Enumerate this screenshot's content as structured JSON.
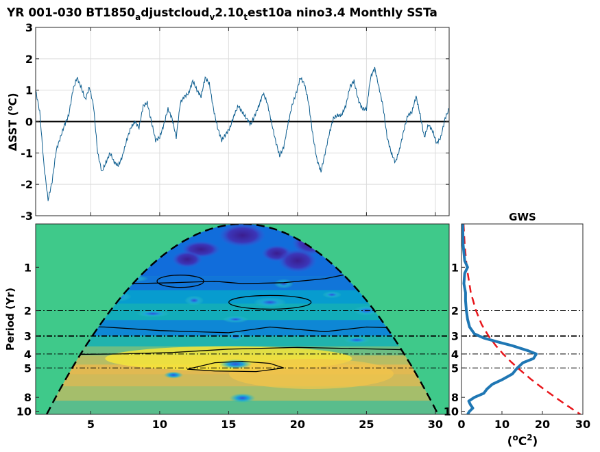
{
  "figure": {
    "title_main": "YR 001-030 BT1850",
    "title_sub1": "a",
    "title_mid1": "djustcloud",
    "title_sub2": "v",
    "title_mid2": "2.10",
    "title_sub3": "t",
    "title_end": "est10a nino3.4 Monthly SSTa"
  },
  "colors": {
    "series_line": "#0b5c8e",
    "zero_line": "#000000",
    "gws_line": "#1f77b4",
    "red_noise": "#e8161b",
    "coi_fill": "#3fc98a",
    "axis": "#262626",
    "grid": "#dcdcdc"
  },
  "chart_data": [
    {
      "type": "line",
      "ylabel_prefix": "ΔSST (",
      "ylabel_sup": "o",
      "ylabel_suffix": "C)",
      "xlim": [
        1,
        31
      ],
      "ylim": [
        -3,
        3
      ],
      "yticks": [
        -3,
        -2,
        -1,
        0,
        1,
        2,
        3
      ],
      "grid": true,
      "series": [
        {
          "x": [
            1.0,
            1.3,
            1.6,
            1.9,
            2.2,
            2.5,
            2.8,
            3.1,
            3.4,
            3.7,
            4.0,
            4.3,
            4.6,
            4.9,
            5.2,
            5.5,
            5.8,
            6.1,
            6.4,
            6.7,
            7.0,
            7.3,
            7.6,
            7.9,
            8.2,
            8.5,
            8.8,
            9.1,
            9.4,
            9.7,
            10.0,
            10.3,
            10.6,
            10.9,
            11.2,
            11.5,
            11.8,
            12.1,
            12.4,
            12.7,
            13.0,
            13.3,
            13.6,
            13.9,
            14.2,
            14.5,
            14.8,
            15.1,
            15.4,
            15.7,
            16.0,
            16.3,
            16.6,
            16.9,
            17.2,
            17.5,
            17.8,
            18.1,
            18.4,
            18.7,
            19.0,
            19.3,
            19.6,
            19.9,
            20.2,
            20.5,
            20.8,
            21.1,
            21.4,
            21.7,
            22.0,
            22.3,
            22.6,
            22.9,
            23.2,
            23.5,
            23.8,
            24.1,
            24.4,
            24.7,
            25.0,
            25.3,
            25.6,
            25.9,
            26.2,
            26.5,
            26.8,
            27.1,
            27.4,
            27.7,
            28.0,
            28.3,
            28.6,
            28.9,
            29.2,
            29.5,
            29.8,
            30.1,
            30.4,
            30.7,
            31.0
          ],
          "y": [
            1.0,
            0.3,
            -1.4,
            -2.5,
            -1.9,
            -0.9,
            -0.5,
            -0.1,
            0.2,
            1.0,
            1.4,
            1.1,
            0.7,
            1.1,
            0.5,
            -1.0,
            -1.6,
            -1.3,
            -1.0,
            -1.3,
            -1.4,
            -1.1,
            -0.6,
            -0.2,
            0.0,
            -0.2,
            0.5,
            0.6,
            0.0,
            -0.6,
            -0.5,
            -0.1,
            0.4,
            0.1,
            -0.5,
            0.6,
            0.8,
            0.9,
            1.3,
            1.0,
            0.8,
            1.4,
            1.2,
            0.4,
            -0.2,
            -0.6,
            -0.4,
            -0.2,
            0.2,
            0.5,
            0.3,
            0.1,
            -0.1,
            0.2,
            0.5,
            0.9,
            0.6,
            0.0,
            -0.6,
            -1.1,
            -0.8,
            -0.1,
            0.5,
            0.9,
            1.4,
            1.2,
            0.6,
            -0.4,
            -1.2,
            -1.6,
            -1.0,
            -0.4,
            0.1,
            0.2,
            0.2,
            0.5,
            1.1,
            1.3,
            0.7,
            0.4,
            0.4,
            1.4,
            1.7,
            1.1,
            0.5,
            -0.5,
            -1.0,
            -1.3,
            -0.9,
            -0.3,
            0.2,
            0.3,
            0.8,
            0.2,
            -0.5,
            -0.1,
            -0.3,
            -0.7,
            -0.5,
            0.1,
            0.4
          ]
        }
      ]
    },
    {
      "type": "heatmap",
      "ylabel": "Period (Yr)",
      "xlim": [
        1,
        31
      ],
      "xticks": [
        5,
        10,
        15,
        20,
        25,
        30
      ],
      "yscale": "log",
      "ylim": [
        0.5,
        10.5
      ],
      "yticks": [
        1,
        2,
        3,
        4,
        5,
        8,
        10
      ],
      "reference_periods": [
        2,
        3,
        4,
        5
      ],
      "highlight_period": 3,
      "band_periods": [
        1.3,
        1.6,
        2.0,
        2.7,
        3.3,
        3.8,
        4.4,
        5.1,
        6.0,
        7.5,
        9.5
      ],
      "band_levels": [
        0.35,
        0.55,
        0.65,
        0.45,
        0.7,
        0.82,
        0.9,
        0.95,
        0.93,
        0.88,
        0.8
      ],
      "colormap": "parula",
      "coi": "cone of influence shaded"
    },
    {
      "type": "line",
      "title": "GWS",
      "xlabel_prefix": "(",
      "xlabel_sup1": "o",
      "xlabel_mid": "C",
      "xlabel_sup2": "2",
      "xlabel_suffix": ")",
      "xlim": [
        0,
        30
      ],
      "xticks": [
        0,
        10,
        20,
        30
      ],
      "yscale": "log",
      "ylim": [
        0.5,
        10.5
      ],
      "yticks": [
        1,
        2,
        3,
        4,
        5,
        8,
        10
      ],
      "series": [
        {
          "period": [
            0.5,
            0.7,
            0.9,
            1.0,
            1.1,
            1.3,
            1.5,
            1.7,
            2.0,
            2.3,
            2.6,
            2.9,
            3.1,
            3.3,
            3.5,
            3.8,
            4.0,
            4.3,
            4.6,
            5.0,
            5.5,
            6.0,
            6.5,
            7.0,
            7.5,
            8.0,
            8.5,
            9.0,
            9.5,
            10.0,
            10.5
          ],
          "power": [
            0.3,
            0.4,
            0.8,
            1.5,
            0.8,
            0.6,
            1.0,
            1.0,
            1.2,
            1.5,
            2.0,
            3.2,
            5.5,
            9.0,
            12.5,
            16.5,
            18.5,
            17.8,
            15.2,
            13.8,
            12.6,
            10.2,
            7.6,
            6.3,
            5.5,
            3.2,
            1.8,
            2.2,
            2.8,
            2.0,
            1.5
          ]
        },
        {
          "name": "red-noise",
          "period": [
            0.5,
            0.7,
            1.0,
            1.5,
            2.0,
            2.5,
            3.0,
            3.5,
            4.0,
            4.5,
            5.0,
            6.0,
            7.0,
            8.0,
            9.0,
            10.0,
            10.5
          ],
          "power": [
            0.5,
            0.8,
            1.3,
            2.3,
            3.6,
            5.0,
            6.7,
            8.5,
            10.3,
            12.1,
            13.9,
            17.2,
            20.3,
            23.2,
            25.8,
            28.2,
            29.4
          ]
        }
      ]
    }
  ]
}
